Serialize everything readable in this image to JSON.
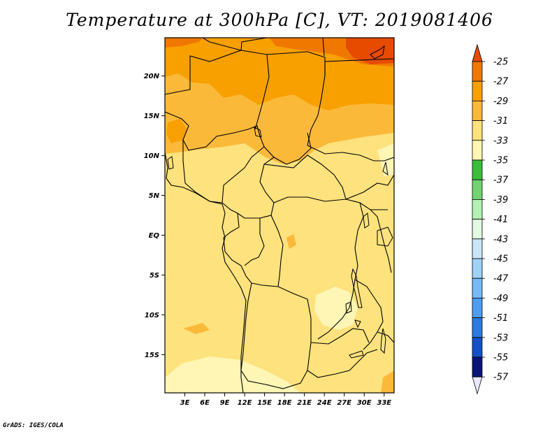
{
  "title": "Temperature at 300hPa [C], VT: 2019081406",
  "credit": "GrADS: IGES/COLA",
  "map": {
    "lat_ticks": [
      "20N",
      "15N",
      "10N",
      "5N",
      "EQ",
      "5S",
      "10S",
      "15S"
    ],
    "lon_ticks": [
      "3E",
      "6E",
      "9E",
      "12E",
      "15E",
      "18E",
      "21E",
      "24E",
      "27E",
      "30E",
      "33E"
    ],
    "lon_range": [
      0,
      34.5
    ],
    "lat_range": [
      -19.8,
      24.8
    ]
  },
  "colorbar": {
    "labels": [
      "-25",
      "-27",
      "-29",
      "-31",
      "-33",
      "-35",
      "-37",
      "-39",
      "-41",
      "-43",
      "-45",
      "-47",
      "-49",
      "-51",
      "-53",
      "-55",
      "-57"
    ],
    "colors": [
      "#e64b00",
      "#f07800",
      "#f8a000",
      "#fbb93a",
      "#fde27d",
      "#fff5b4",
      "#3cbc3c",
      "#73d273",
      "#b4f0b4",
      "#e1fae1",
      "#c8e6f8",
      "#a0d2f8",
      "#78b9f8",
      "#509bf0",
      "#2d78e1",
      "#1450c8",
      "#0a1478",
      "#e8e8ff"
    ]
  },
  "legend_levels_c": [
    -25,
    -27,
    -29,
    -31,
    -33,
    -35
  ]
}
